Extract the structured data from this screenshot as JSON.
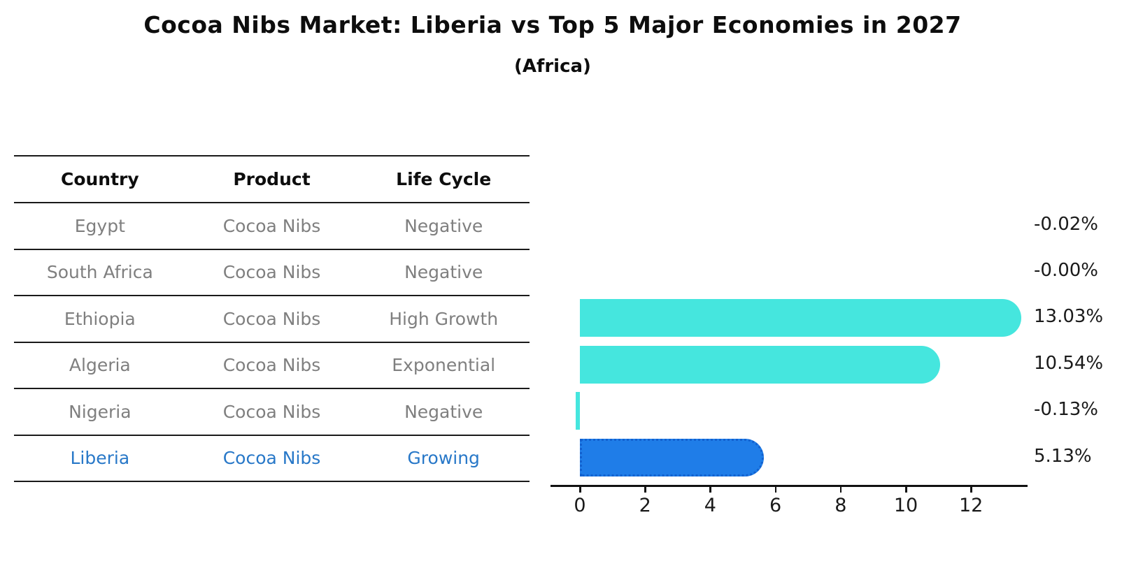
{
  "header": {
    "title": "Cocoa Nibs Market: Liberia vs Top 5 Major Economies in 2027",
    "subtitle": "(Africa)"
  },
  "table": {
    "columns": [
      "Country",
      "Product",
      "Life Cycle"
    ],
    "rows": [
      {
        "country": "Egypt",
        "product": "Cocoa Nibs",
        "life_cycle": "Negative",
        "highlight": false
      },
      {
        "country": "South Africa",
        "product": "Cocoa Nibs",
        "life_cycle": "Negative",
        "highlight": false
      },
      {
        "country": "Ethiopia",
        "product": "Cocoa Nibs",
        "life_cycle": "High Growth",
        "highlight": false
      },
      {
        "country": "Algeria",
        "product": "Cocoa Nibs",
        "life_cycle": "Exponential",
        "highlight": false
      },
      {
        "country": "Nigeria",
        "product": "Cocoa Nibs",
        "life_cycle": "Negative",
        "highlight": false
      },
      {
        "country": "Liberia",
        "product": "Cocoa Nibs",
        "life_cycle": "Growing",
        "highlight": true
      }
    ]
  },
  "chart_data": {
    "type": "bar",
    "orientation": "horizontal",
    "title": "Cocoa Nibs Market: Liberia vs Top 5 Major Economies in 2027",
    "subtitle": "(Africa)",
    "categories": [
      "Egypt",
      "South Africa",
      "Ethiopia",
      "Algeria",
      "Nigeria",
      "Liberia"
    ],
    "values": [
      -0.02,
      -0.0,
      13.03,
      10.54,
      -0.13,
      5.13
    ],
    "value_labels": [
      "-0.02%",
      "-0.00%",
      "13.03%",
      "10.54%",
      "-0.13%",
      "5.13%"
    ],
    "x_ticks": [
      0,
      2,
      4,
      6,
      8,
      10,
      12
    ],
    "xlim": [
      -0.9,
      13.8
    ],
    "grid": false,
    "legend": null,
    "colors": {
      "bar": "#45e6de",
      "highlight_bar": "#1f7de8",
      "highlight_bar_border": "#1261cf",
      "highlight_text": "#2878c8",
      "row_text": "#7f7f7f",
      "header_text": "#0d0d0d",
      "axis": "#111111"
    },
    "highlight_index": 5
  }
}
